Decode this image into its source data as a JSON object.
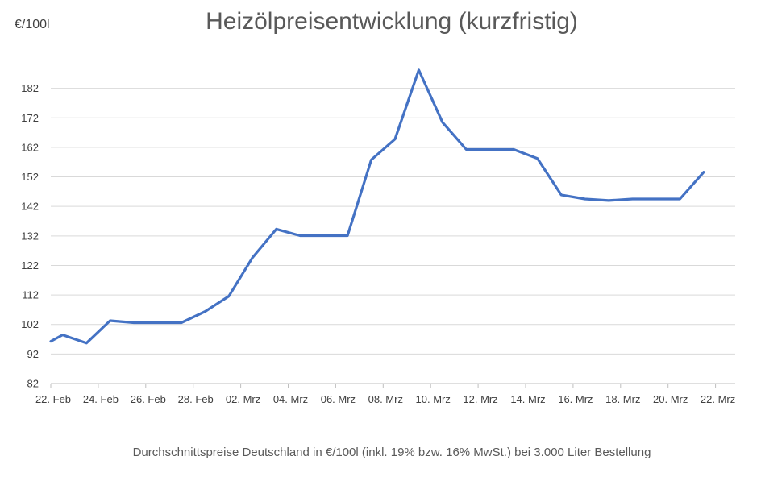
{
  "chart_data": {
    "type": "line",
    "title": "Heizölpreisentwicklung (kurzfristig)",
    "ylabel": "€/100l",
    "footnote": "Durchschnittspreise Deutschland in €/100l (inkl. 19% bzw. 16%  MwSt.) bei 3.000 Liter Bestellung",
    "ylim": [
      82,
      192
    ],
    "yticks": [
      82,
      92,
      102,
      112,
      122,
      132,
      142,
      152,
      162,
      172,
      182
    ],
    "xtick_labels": [
      "22. Feb",
      "24. Feb",
      "26. Feb",
      "28. Feb",
      "02. Mrz",
      "04. Mrz",
      "06. Mrz",
      "08. Mrz",
      "10. Mrz",
      "12. Mrz",
      "14. Mrz",
      "16. Mrz",
      "18. Mrz",
      "20. Mrz",
      "22. Mrz"
    ],
    "grid": true,
    "line_color": "#4472C4",
    "series": [
      {
        "points": [
          {
            "x": "22. Feb",
            "y": 96.3
          },
          {
            "x": "22.5 Feb",
            "y": 98.5
          },
          {
            "x": "23.5 Feb",
            "y": 95.7
          },
          {
            "x": "24.5 Feb",
            "y": 103.3
          },
          {
            "x": "25.5 Feb",
            "y": 102.6
          },
          {
            "x": "26.5 Feb",
            "y": 102.6
          },
          {
            "x": "27.5 Feb",
            "y": 102.6
          },
          {
            "x": "28.5 Feb",
            "y": 106.4
          },
          {
            "x": "01.5 Mrz",
            "y": 111.6
          },
          {
            "x": "02.5 Mrz",
            "y": 124.7
          },
          {
            "x": "03.5 Mrz",
            "y": 134.3
          },
          {
            "x": "04.5 Mrz",
            "y": 132.1
          },
          {
            "x": "05.5 Mrz",
            "y": 132.1
          },
          {
            "x": "06.5 Mrz",
            "y": 132.1
          },
          {
            "x": "07.5 Mrz",
            "y": 157.8
          },
          {
            "x": "08.5 Mrz",
            "y": 164.8
          },
          {
            "x": "09.5 Mrz",
            "y": 188.2
          },
          {
            "x": "10.5 Mrz",
            "y": 170.5
          },
          {
            "x": "11.5 Mrz",
            "y": 161.3
          },
          {
            "x": "12.5 Mrz",
            "y": 161.3
          },
          {
            "x": "13.5 Mrz",
            "y": 161.3
          },
          {
            "x": "14.5 Mrz",
            "y": 158.2
          },
          {
            "x": "15.5 Mrz",
            "y": 145.9
          },
          {
            "x": "16.5 Mrz",
            "y": 144.5
          },
          {
            "x": "17.5 Mrz",
            "y": 144.0
          },
          {
            "x": "18.5 Mrz",
            "y": 144.5
          },
          {
            "x": "19.5 Mrz",
            "y": 144.5
          },
          {
            "x": "20.5 Mrz",
            "y": 144.5
          },
          {
            "x": "21.5 Mrz",
            "y": 153.6
          }
        ]
      }
    ]
  }
}
